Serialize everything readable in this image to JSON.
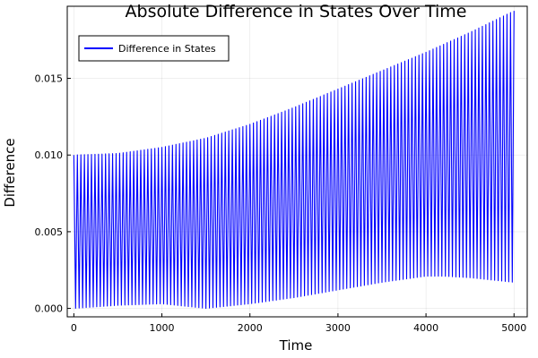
{
  "chart_data": {
    "type": "line",
    "title": "Absolute Difference in States Over Time",
    "xlabel": "Time",
    "ylabel": "Difference",
    "xlim": [
      -75,
      5150
    ],
    "ylim": [
      -0.00055,
      0.0197
    ],
    "xticks": [
      0,
      1000,
      2000,
      3000,
      4000,
      5000
    ],
    "xtick_labels": [
      "0",
      "1000",
      "2000",
      "3000",
      "4000",
      "5000"
    ],
    "yticks": [
      0.0,
      0.005,
      0.01,
      0.015
    ],
    "ytick_labels": [
      "0.000",
      "0.005",
      "0.010",
      "0.015"
    ],
    "grid": true,
    "legend_position": "top-left",
    "series": [
      {
        "name": "Difference in States",
        "color": "#0000ff",
        "oscillation_period": 40,
        "x_range": [
          0,
          5000
        ],
        "upper_envelope": {
          "x": [
            0,
            500,
            1000,
            1500,
            2000,
            2500,
            3000,
            3500,
            4000,
            4500,
            5000
          ],
          "y": [
            0.01,
            0.0101,
            0.0105,
            0.0111,
            0.012,
            0.0131,
            0.0143,
            0.0155,
            0.0167,
            0.018,
            0.0194
          ]
        },
        "lower_envelope": {
          "x": [
            0,
            500,
            1000,
            1500,
            2000,
            2500,
            3000,
            3500,
            4000,
            4200,
            4500,
            5000
          ],
          "y": [
            0.0,
            0.0002,
            0.0003,
            0.0,
            0.0003,
            0.0007,
            0.0012,
            0.0017,
            0.0021,
            0.0021,
            0.002,
            0.0017
          ]
        }
      }
    ]
  }
}
